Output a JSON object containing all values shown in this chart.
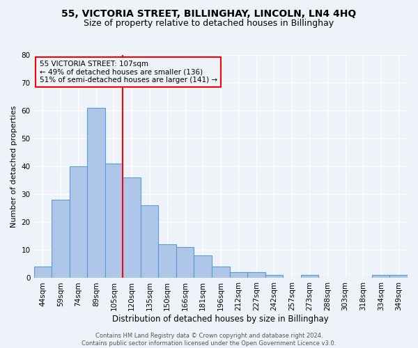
{
  "title1": "55, VICTORIA STREET, BILLINGHAY, LINCOLN, LN4 4HQ",
  "title2": "Size of property relative to detached houses in Billinghay",
  "xlabel": "Distribution of detached houses by size in Billinghay",
  "ylabel": "Number of detached properties",
  "bar_labels": [
    "44sqm",
    "59sqm",
    "74sqm",
    "89sqm",
    "105sqm",
    "120sqm",
    "135sqm",
    "150sqm",
    "166sqm",
    "181sqm",
    "196sqm",
    "212sqm",
    "227sqm",
    "242sqm",
    "257sqm",
    "273sqm",
    "288sqm",
    "303sqm",
    "318sqm",
    "334sqm",
    "349sqm"
  ],
  "bar_values": [
    4,
    28,
    40,
    61,
    41,
    36,
    26,
    12,
    11,
    8,
    4,
    2,
    2,
    1,
    0,
    1,
    0,
    0,
    0,
    1,
    1
  ],
  "bar_color": "#aec6e8",
  "bar_edge_color": "#5b9bd5",
  "vline_x": 4.5,
  "vline_color": "red",
  "annotation_line1": "55 VICTORIA STREET: 107sqm",
  "annotation_line2": "← 49% of detached houses are smaller (136)",
  "annotation_line3": "51% of semi-detached houses are larger (141) →",
  "ylim": [
    0,
    80
  ],
  "yticks": [
    0,
    10,
    20,
    30,
    40,
    50,
    60,
    70,
    80
  ],
  "bg_color": "#eef3fa",
  "footnote": "Contains HM Land Registry data © Crown copyright and database right 2024.\nContains public sector information licensed under the Open Government Licence v3.0.",
  "grid_color": "#ffffff",
  "title1_fontsize": 10,
  "title2_fontsize": 9,
  "xlabel_fontsize": 8.5,
  "ylabel_fontsize": 8,
  "tick_fontsize": 7.5,
  "annot_fontsize": 7.5,
  "footnote_fontsize": 6
}
